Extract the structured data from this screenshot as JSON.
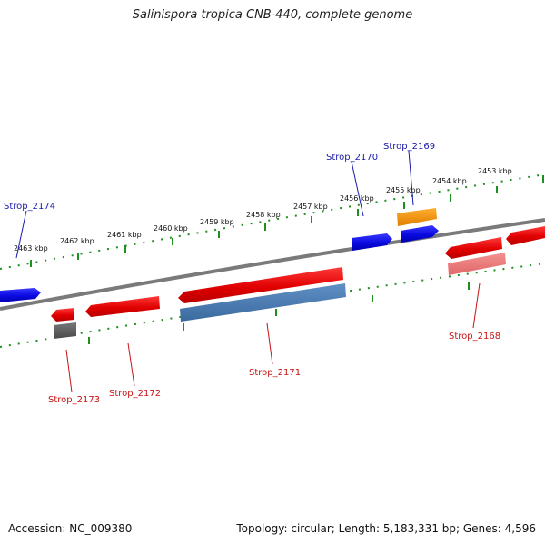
{
  "title": "Salinispora tropica CNB-440, complete genome",
  "footer": {
    "accession": "Accession: NC_009380",
    "topology": "Topology: circular; Length: 5,183,331 bp; Genes: 4,596"
  },
  "colors": {
    "backbone": "#808080",
    "ticks": "#1f8f1f",
    "forward_gene": "#1414e6",
    "reverse_gene": "#e60a0a",
    "label_forward": "#1a1aa8",
    "label_reverse": "#c81414"
  },
  "kbp_labels": [
    "2463 kbp",
    "2462 kbp",
    "2461 kbp",
    "2460 kbp",
    "2459 kbp",
    "2458 kbp",
    "2457 kbp",
    "2456 kbp",
    "2455 kbp",
    "2454 kbp",
    "2453 kbp"
  ],
  "gene_labels": {
    "strop_2174": "Strop_2174",
    "strop_2170": "Strop_2170",
    "strop_2169": "Strop_2169",
    "strop_2173": "Strop_2173",
    "strop_2172": "Strop_2172",
    "strop_2171": "Strop_2171",
    "strop_2168": "Strop_2168"
  }
}
